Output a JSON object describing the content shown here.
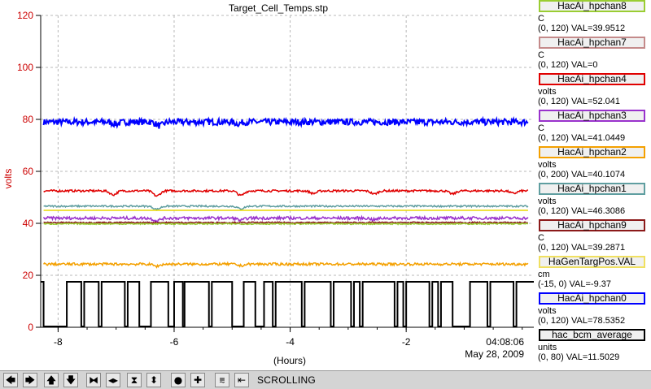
{
  "chart_data": {
    "type": "line",
    "title": "Target_Cell_Temps.stp",
    "xlabel": "(Hours)",
    "ylabel": "volts",
    "xlim": [
      -8.3,
      0.2
    ],
    "ylim": [
      0,
      120
    ],
    "x_ticks": [
      "-8",
      "-6",
      "-4",
      "-2"
    ],
    "y_ticks": [
      "0",
      "20",
      "40",
      "60",
      "80",
      "100",
      "120"
    ],
    "grid": true,
    "timestamp_time": "04:08:06",
    "timestamp_date": "May 28, 2009",
    "series": [
      {
        "name": "HacAi_hpchan0",
        "color": "#0000ff",
        "mean": 79.0,
        "noise": 0.75,
        "dips": [
          [
            -6.25,
            1.5
          ],
          [
            -7.0,
            0.8
          ],
          [
            -4.9,
            0.6
          ]
        ]
      },
      {
        "name": "HacAi_hpchan4",
        "color": "#e00000",
        "mean": 52.5,
        "noise": 0.25,
        "dips": [
          [
            -7.05,
            1.5
          ],
          [
            -6.3,
            2.0
          ],
          [
            -4.85,
            1.8
          ],
          [
            -3.6,
            1.0
          ],
          [
            -2.55,
            1.2
          ],
          [
            -1.2,
            1.2
          ],
          [
            -0.15,
            1.0
          ]
        ]
      },
      {
        "name": "HacAi_hpchan1",
        "color": "#5f9ea0",
        "mean": 46.6,
        "noise": 0.2,
        "dips": [
          [
            -6.3,
            1.2
          ],
          [
            -4.85,
            1.0
          ]
        ]
      },
      {
        "name": "HaGenTargPos.VAL",
        "color": "#e8d800",
        "mean": 45.0,
        "noise": 0.0,
        "dips": []
      },
      {
        "name": "HacAi_hpchan3",
        "color": "#9932cc",
        "mean": 42.0,
        "noise": 0.35,
        "dips": [
          [
            -6.3,
            1.0
          ],
          [
            -4.85,
            0.8
          ],
          [
            -2.55,
            0.6
          ]
        ]
      },
      {
        "name": "HacAi_hpchan9",
        "color": "#8b1a1a",
        "mean": 40.3,
        "noise": 0.15,
        "dips": []
      },
      {
        "name": "HacAi_hpchan8",
        "color": "#9acd32",
        "mean": 39.8,
        "noise": 0.15,
        "dips": []
      },
      {
        "name": "HacAi_hpchan2",
        "color": "#f4a000",
        "mean": 24.3,
        "noise": 0.3,
        "dips": [
          [
            -6.3,
            0.8
          ],
          [
            -4.85,
            0.6
          ]
        ]
      }
    ],
    "bcm_square_wave": {
      "name": "hac_bcm_average",
      "color": "#000000",
      "high": 17.5,
      "low": 0.3,
      "transitions": [
        -8.25,
        -7.85,
        -7.6,
        -7.55,
        -7.3,
        -7.25,
        -6.85,
        -6.8,
        -6.6,
        -6.4,
        -6.1,
        -6.0,
        -5.85,
        -5.82,
        -5.4,
        -5.35,
        -5.0,
        -4.8,
        -4.6,
        -4.45,
        -4.3,
        -4.25,
        -3.8,
        -3.75,
        -3.3,
        -3.25,
        -2.95,
        -2.9,
        -2.8,
        -2.75,
        -2.2,
        -2.15,
        -2.05,
        -2.0,
        -1.6,
        -1.55,
        -1.45,
        -1.4,
        -1.2,
        -0.9,
        -0.6,
        -0.55,
        -0.15,
        -0.1
      ]
    }
  },
  "legend": [
    {
      "label": "HacAi_hpchan8",
      "color": "#9acd32",
      "unit": "C",
      "range_val": "(0, 120) VAL=39.9512"
    },
    {
      "label": "HacAi_hpchan7",
      "color": "#c48a8a",
      "unit": "C",
      "range_val": "(0, 120) VAL=0"
    },
    {
      "label": "HacAi_hpchan4",
      "color": "#e00000",
      "unit": "volts",
      "range_val": "(0, 120) VAL=52.041"
    },
    {
      "label": "HacAi_hpchan3",
      "color": "#9932cc",
      "unit": "C",
      "range_val": "(0, 120) VAL=41.0449"
    },
    {
      "label": "HacAi_hpchan2",
      "color": "#f4a000",
      "unit": "volts",
      "range_val": "(0, 200) VAL=40.1074"
    },
    {
      "label": "HacAi_hpchan1",
      "color": "#5f9ea0",
      "unit": "volts",
      "range_val": "(0, 120) VAL=46.3086"
    },
    {
      "label": "HacAi_hpchan9",
      "color": "#8b1a1a",
      "unit": "C",
      "range_val": "(0, 120) VAL=39.2871"
    },
    {
      "label": "HaGenTargPos.VAL",
      "color": "#f0e060",
      "unit": "cm",
      "range_val": "(-15, 0) VAL=-9.37"
    },
    {
      "label": "HacAi_hpchan0",
      "color": "#0000ff",
      "unit": "volts",
      "range_val": "(0, 120) VAL=78.5352"
    },
    {
      "label": "hac_bcm_average",
      "color": "#000000",
      "unit": "units",
      "range_val": "(0, 80) VAL=11.5029"
    }
  ],
  "toolbar": {
    "buttons": [
      {
        "name": "scroll-left-button",
        "icon": "arrow-left-icon",
        "glyph": "🡄"
      },
      {
        "name": "scroll-right-button",
        "icon": "arrow-right-icon",
        "glyph": "🡆"
      },
      {
        "name": "scroll-up-button",
        "icon": "arrow-up-icon",
        "glyph": "🡅"
      },
      {
        "name": "scroll-down-button",
        "icon": "arrow-down-icon",
        "glyph": "🡇"
      },
      {
        "name": "zoom-in-x-button",
        "icon": "zoom-in-x-icon",
        "glyph": "⧓"
      },
      {
        "name": "zoom-out-x-button",
        "icon": "zoom-out-x-icon",
        "glyph": "◂▸"
      },
      {
        "name": "zoom-in-y-button",
        "icon": "zoom-in-y-icon",
        "glyph": "⧗"
      },
      {
        "name": "zoom-out-y-button",
        "icon": "zoom-out-y-icon",
        "glyph": "⬍"
      },
      {
        "name": "reset-button",
        "icon": "circle-icon",
        "glyph": "●"
      },
      {
        "name": "add-button",
        "icon": "plus-icon",
        "glyph": "✚"
      },
      {
        "name": "autoscale-button",
        "icon": "autoscale-icon",
        "glyph": "⩳"
      },
      {
        "name": "jump-end-button",
        "icon": "jump-to-end-icon",
        "glyph": "⇤"
      }
    ],
    "status": "SCROLLING"
  }
}
